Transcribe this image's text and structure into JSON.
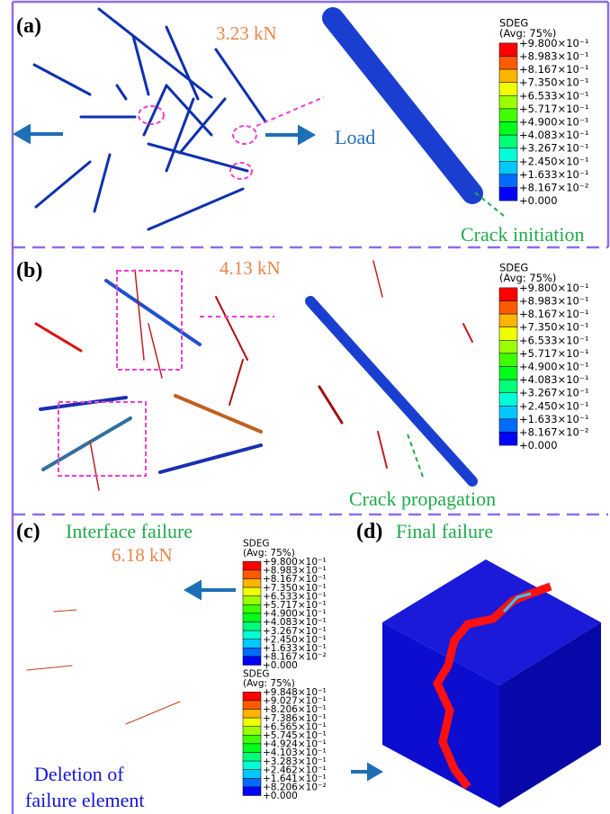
{
  "panels": [
    {
      "label": "(a)",
      "force": "3.23 kN",
      "annotations": [
        "Load",
        "Crack initiation"
      ]
    },
    {
      "label": "(b)",
      "force": "4.13 kN",
      "annotations": [
        "Crack propagation"
      ]
    },
    {
      "label": "(c)",
      "force": "6.18 kN",
      "annotations": [
        "Interface failure",
        "Deletion of",
        "failure element"
      ]
    },
    {
      "label": "(d)",
      "annotations": [
        "Final failure"
      ]
    }
  ],
  "legend_colors": [
    "#ff0000",
    "#ff5a00",
    "#ffb400",
    "#f0ff00",
    "#9cff00",
    "#40ff00",
    "#00ff1a",
    "#00ff7a",
    "#00ffd5",
    "#00c8ff",
    "#006cff",
    "#0000ff"
  ],
  "legends": [
    {
      "title": "SDEG",
      "subtitle": "(Avg: 75%)",
      "labels": [
        "+9.800×10⁻¹",
        "+8.983×10⁻¹",
        "+8.167×10⁻¹",
        "+7.350×10⁻¹",
        "+6.533×10⁻¹",
        "+5.717×10⁻¹",
        "+4.900×10⁻¹",
        "+4.083×10⁻¹",
        "+3.267×10⁻¹",
        "+2.450×10⁻¹",
        "+1.633×10⁻¹",
        "+8.167×10⁻²",
        "+0.000"
      ]
    },
    {
      "title": "SDEG",
      "subtitle": "(Avg: 75%)",
      "labels": [
        "+9.800×10⁻¹",
        "+8.983×10⁻¹",
        "+8.167×10⁻¹",
        "+7.350×10⁻¹",
        "+6.533×10⁻¹",
        "+5.717×10⁻¹",
        "+4.900×10⁻¹",
        "+4.083×10⁻¹",
        "+3.267×10⁻¹",
        "+2.450×10⁻¹",
        "+1.633×10⁻¹",
        "+8.167×10⁻²",
        "+0.000"
      ]
    },
    {
      "title": "SDEG",
      "subtitle": "(Avg: 75%)",
      "labels": [
        "+9.800×10⁻¹",
        "+8.983×10⁻¹",
        "+8.167×10⁻¹",
        "+7.350×10⁻¹",
        "+6.533×10⁻¹",
        "+5.717×10⁻¹",
        "+4.900×10⁻¹",
        "+4.083×10⁻¹",
        "+3.267×10⁻¹",
        "+2.450×10⁻¹",
        "+1.633×10⁻¹",
        "+8.167×10⁻²",
        "+0.000"
      ]
    },
    {
      "title": "SDEG",
      "subtitle": "(Avg: 75%)",
      "labels": [
        "+9.848×10⁻¹",
        "+9.027×10⁻¹",
        "+8.206×10⁻¹",
        "+7.386×10⁻¹",
        "+6.565×10⁻¹",
        "+5.745×10⁻¹",
        "+4.924×10⁻¹",
        "+4.103×10⁻¹",
        "+3.283×10⁻¹",
        "+2.462×10⁻¹",
        "+1.641×10⁻¹",
        "+8.206×10⁻²",
        "+0.000"
      ]
    }
  ]
}
